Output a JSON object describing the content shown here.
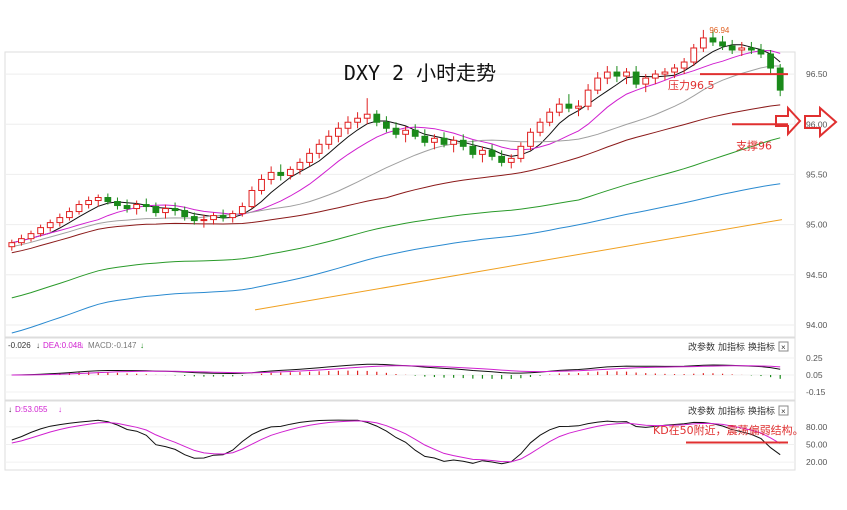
{
  "chart_data": {
    "type": "candlestick",
    "title": "DXY 2 小时走势",
    "main_panel": {
      "y_ticks": [
        "96.50",
        "96.00",
        "95.50",
        "95.00",
        "94.50",
        "94.00"
      ],
      "ylim": [
        93.9,
        96.7
      ],
      "high_marker": "96.94",
      "annotations": [
        {
          "text": "压力96.5",
          "level": 96.5
        },
        {
          "text": "支撑96",
          "level": 96.0
        }
      ],
      "candles_ohlc": [
        [
          94.78,
          94.85,
          94.74,
          94.82
        ],
        [
          94.82,
          94.9,
          94.79,
          94.86
        ],
        [
          94.86,
          94.94,
          94.83,
          94.91
        ],
        [
          94.91,
          95.0,
          94.88,
          94.97
        ],
        [
          94.97,
          95.05,
          94.93,
          95.02
        ],
        [
          95.02,
          95.11,
          94.98,
          95.07
        ],
        [
          95.07,
          95.17,
          95.04,
          95.13
        ],
        [
          95.13,
          95.24,
          95.1,
          95.2
        ],
        [
          95.2,
          95.28,
          95.16,
          95.24
        ],
        [
          95.24,
          95.3,
          95.18,
          95.27
        ],
        [
          95.27,
          95.31,
          95.2,
          95.23
        ],
        [
          95.23,
          95.27,
          95.15,
          95.19
        ],
        [
          95.19,
          95.25,
          95.12,
          95.16
        ],
        [
          95.16,
          95.24,
          95.1,
          95.2
        ],
        [
          95.2,
          95.26,
          95.13,
          95.18
        ],
        [
          95.18,
          95.22,
          95.08,
          95.12
        ],
        [
          95.12,
          95.2,
          95.06,
          95.16
        ],
        [
          95.16,
          95.22,
          95.09,
          95.14
        ],
        [
          95.14,
          95.18,
          95.04,
          95.08
        ],
        [
          95.08,
          95.12,
          95.0,
          95.04
        ],
        [
          95.04,
          95.1,
          94.97,
          95.05
        ],
        [
          95.05,
          95.12,
          95.0,
          95.09
        ],
        [
          95.09,
          95.15,
          95.03,
          95.07
        ],
        [
          95.07,
          95.14,
          95.02,
          95.11
        ],
        [
          95.11,
          95.22,
          95.08,
          95.18
        ],
        [
          95.18,
          95.38,
          95.16,
          95.34
        ],
        [
          95.34,
          95.5,
          95.3,
          95.45
        ],
        [
          95.45,
          95.58,
          95.4,
          95.52
        ],
        [
          95.52,
          95.6,
          95.44,
          95.49
        ],
        [
          95.49,
          95.58,
          95.45,
          95.55
        ],
        [
          95.55,
          95.66,
          95.5,
          95.62
        ],
        [
          95.62,
          95.76,
          95.58,
          95.71
        ],
        [
          95.71,
          95.85,
          95.66,
          95.8
        ],
        [
          95.8,
          95.94,
          95.75,
          95.88
        ],
        [
          95.88,
          96.02,
          95.82,
          95.96
        ],
        [
          95.96,
          96.08,
          95.9,
          96.02
        ],
        [
          96.02,
          96.12,
          95.96,
          96.06
        ],
        [
          96.06,
          96.26,
          96.0,
          96.1
        ],
        [
          96.1,
          96.14,
          95.98,
          96.02
        ],
        [
          96.02,
          96.08,
          95.92,
          95.96
        ],
        [
          95.96,
          96.02,
          95.86,
          95.9
        ],
        [
          95.9,
          95.98,
          95.82,
          95.94
        ],
        [
          95.94,
          96.0,
          95.85,
          95.88
        ],
        [
          95.88,
          95.95,
          95.78,
          95.82
        ],
        [
          95.82,
          95.9,
          95.75,
          95.86
        ],
        [
          95.86,
          95.92,
          95.77,
          95.8
        ],
        [
          95.8,
          95.88,
          95.72,
          95.84
        ],
        [
          95.84,
          95.9,
          95.74,
          95.78
        ],
        [
          95.78,
          95.84,
          95.66,
          95.7
        ],
        [
          95.7,
          95.78,
          95.62,
          95.74
        ],
        [
          95.74,
          95.8,
          95.64,
          95.68
        ],
        [
          95.68,
          95.74,
          95.58,
          95.62
        ],
        [
          95.62,
          95.7,
          95.56,
          95.66
        ],
        [
          95.66,
          95.82,
          95.62,
          95.78
        ],
        [
          95.78,
          95.96,
          95.74,
          95.92
        ],
        [
          95.92,
          96.06,
          95.88,
          96.02
        ],
        [
          96.02,
          96.16,
          95.98,
          96.12
        ],
        [
          96.12,
          96.26,
          96.08,
          96.2
        ],
        [
          96.2,
          96.3,
          96.12,
          96.16
        ],
        [
          96.16,
          96.24,
          96.08,
          96.18
        ],
        [
          96.18,
          96.4,
          96.14,
          96.34
        ],
        [
          96.34,
          96.52,
          96.3,
          96.46
        ],
        [
          96.46,
          96.58,
          96.4,
          96.52
        ],
        [
          96.52,
          96.58,
          96.42,
          96.48
        ],
        [
          96.48,
          96.56,
          96.4,
          96.52
        ],
        [
          96.52,
          96.58,
          96.36,
          96.4
        ],
        [
          96.4,
          96.5,
          96.32,
          96.46
        ],
        [
          96.46,
          96.54,
          96.4,
          96.5
        ],
        [
          96.5,
          96.56,
          96.44,
          96.52
        ],
        [
          96.52,
          96.6,
          96.46,
          96.56
        ],
        [
          96.56,
          96.66,
          96.5,
          96.62
        ],
        [
          96.62,
          96.8,
          96.58,
          96.76
        ],
        [
          96.76,
          96.94,
          96.72,
          96.86
        ],
        [
          96.86,
          96.94,
          96.78,
          96.82
        ],
        [
          96.82,
          96.88,
          96.74,
          96.78
        ],
        [
          96.78,
          96.84,
          96.7,
          96.74
        ],
        [
          96.74,
          96.82,
          96.68,
          96.76
        ],
        [
          96.76,
          96.82,
          96.7,
          96.74
        ],
        [
          96.74,
          96.8,
          96.66,
          96.7
        ],
        [
          96.7,
          96.74,
          96.5,
          96.56
        ],
        [
          96.56,
          96.6,
          96.28,
          96.34
        ]
      ]
    },
    "macd_panel": {
      "legend": [
        "-0.026",
        "DEA:0.048",
        "MACD:-0.147"
      ],
      "y_ticks": [
        "0.25",
        "0.05",
        "-0.15"
      ],
      "ylim": [
        -0.22,
        0.32
      ]
    },
    "kd_panel": {
      "legend": [
        "D:53.055"
      ],
      "y_ticks": [
        "80.00",
        "50.00",
        "20.00"
      ],
      "ylim": [
        10,
        95
      ],
      "annotation": {
        "text": "KD在50附近，震荡偏弱结构。",
        "level": 50
      }
    }
  },
  "toolbar": {
    "change_params": "改参数",
    "add_indicator": "加指标",
    "switch_indicator": "换指标",
    "close": "×"
  },
  "colors": {
    "up": "#e02020",
    "down": "#1a8a1a",
    "ma5": "#111111",
    "ma10": "#d020d0",
    "ma20": "#a0a0a0",
    "ma40": "#8b1a1a",
    "ma60": "#2a9a2a",
    "ma120": "#2a8ad0",
    "ma250": "#f0a020",
    "annotation": "#e03030"
  }
}
